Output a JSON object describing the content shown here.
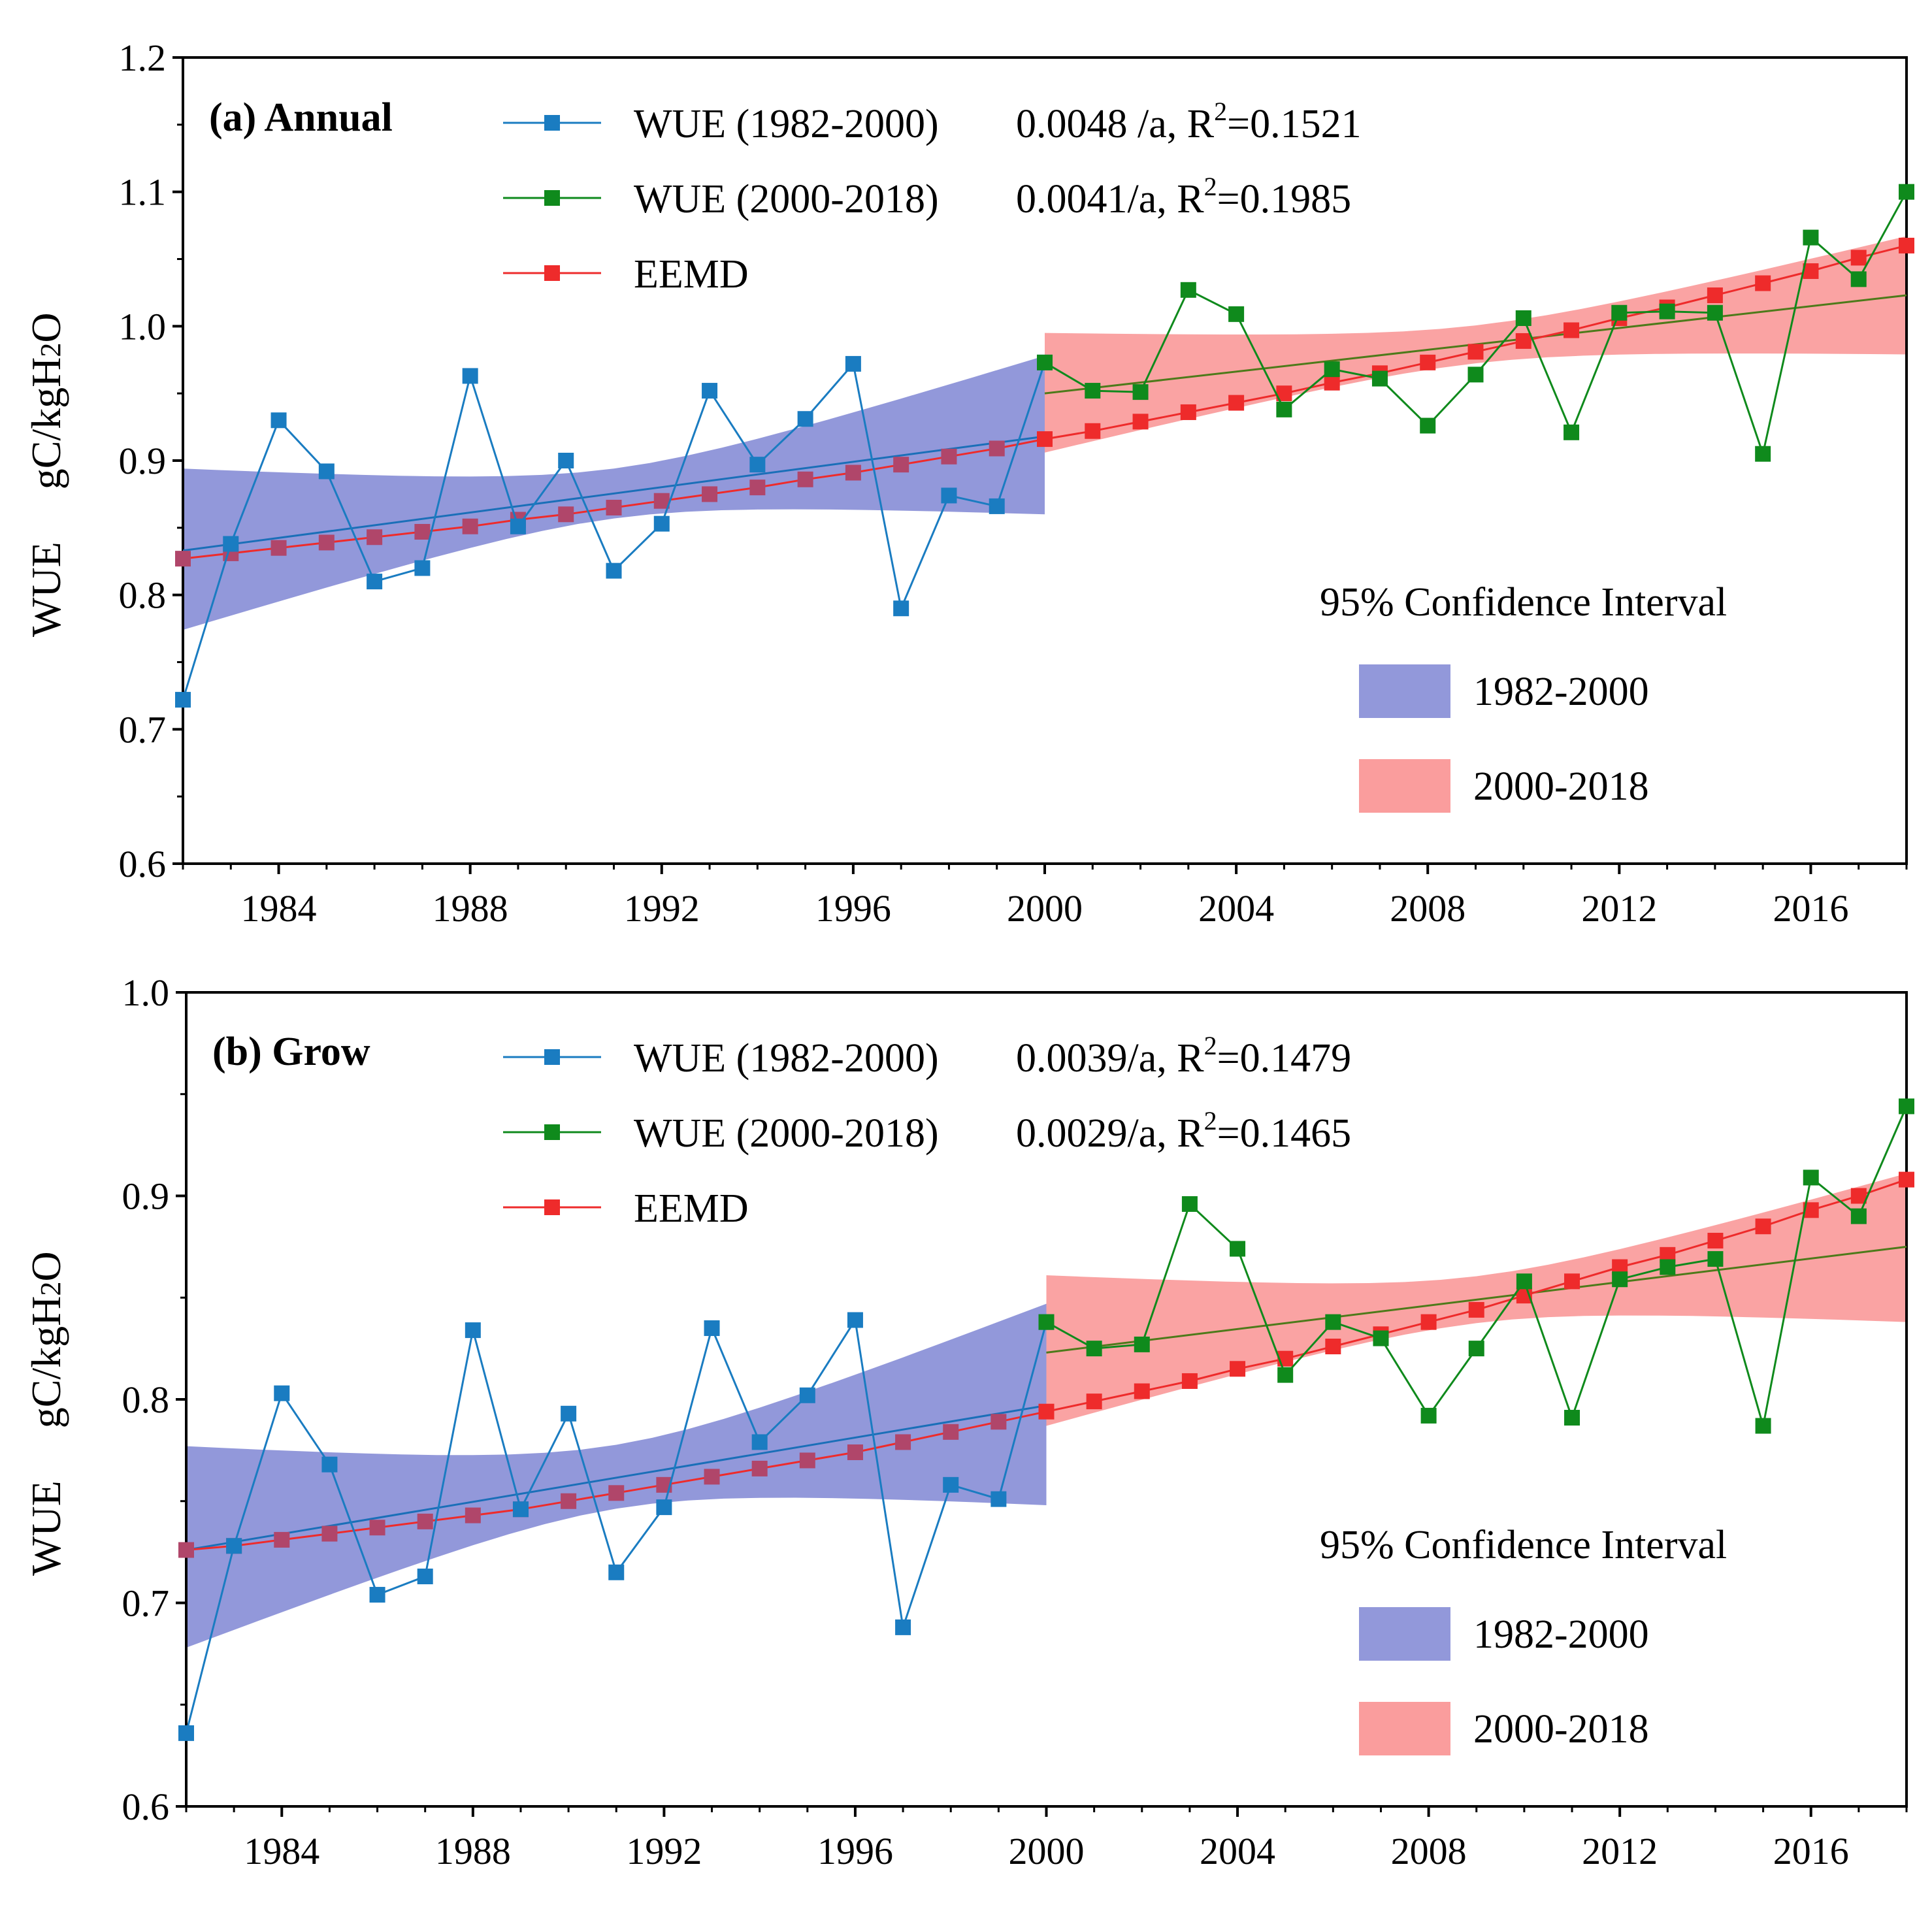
{
  "colors": {
    "blue": "#1a7cc1",
    "green": "#0f8a1c",
    "red": "#ee2b2b",
    "blue_band": "#7f86d4",
    "red_band": "#f98c8c",
    "overlap_marker": "#b0466a",
    "fit_blue": "#1a6fb8",
    "fit_green": "#4d7a1a"
  },
  "years": [
    1982,
    1983,
    1984,
    1985,
    1986,
    1987,
    1988,
    1989,
    1990,
    1991,
    1992,
    1993,
    1994,
    1995,
    1996,
    1997,
    1998,
    1999,
    2000,
    2001,
    2002,
    2003,
    2004,
    2005,
    2006,
    2007,
    2008,
    2009,
    2010,
    2011,
    2012,
    2013,
    2014,
    2015,
    2016,
    2017,
    2018
  ],
  "chart_data": [
    {
      "type": "line",
      "title": "(a) Annual",
      "ylabel_left": "WUE",
      "ylabel_right": "gC/kgH2O",
      "xlim": [
        1982,
        2018
      ],
      "ylim": [
        0.6,
        1.2
      ],
      "x_ticks": [
        "1984",
        "1988",
        "1992",
        "1996",
        "2000",
        "2004",
        "2008",
        "2012",
        "2016"
      ],
      "y_ticks": [
        "0.6",
        "0.7",
        "0.8",
        "0.9",
        "1.0",
        "1.1",
        "1.2"
      ],
      "series": [
        {
          "name": "WUE (1982-2000)",
          "stat": "0.0048 /a, R",
          "r2": "=0.1521",
          "x_start": 1982,
          "values": [
            0.722,
            0.838,
            0.93,
            0.892,
            0.81,
            0.82,
            0.963,
            0.851,
            0.9,
            0.818,
            0.853,
            0.952,
            0.897,
            0.931,
            0.972,
            0.79,
            0.874,
            0.866,
            0.973
          ]
        },
        {
          "name": "WUE (2000-2018)",
          "stat": "0.0041/a, R",
          "r2": "=0.1985",
          "x_start": 2000,
          "values": [
            0.973,
            0.952,
            0.951,
            1.027,
            1.009,
            0.938,
            0.968,
            0.961,
            0.926,
            0.964,
            1.006,
            0.921,
            1.01,
            1.011,
            1.01,
            0.905,
            1.066,
            1.035,
            1.1
          ]
        },
        {
          "name": "EEMD",
          "x_start": 1982,
          "values": [
            0.827,
            0.831,
            0.835,
            0.839,
            0.843,
            0.847,
            0.851,
            0.856,
            0.86,
            0.865,
            0.87,
            0.875,
            0.88,
            0.886,
            0.891,
            0.897,
            0.903,
            0.909,
            0.916,
            0.922,
            0.929,
            0.936,
            0.943,
            0.95,
            0.958,
            0.965,
            0.973,
            0.981,
            0.989,
            0.997,
            1.006,
            1.014,
            1.023,
            1.032,
            1.041,
            1.051,
            1.06
          ]
        }
      ],
      "fits": [
        {
          "name": "fit 1982-2000",
          "x": [
            1982,
            2000
          ],
          "y": [
            0.833,
            0.918
          ]
        },
        {
          "name": "fit 2000-2018",
          "x": [
            2000,
            2018
          ],
          "y": [
            0.95,
            1.023
          ]
        }
      ],
      "bands": [
        {
          "name": "1982-2000",
          "x": [
            1982,
            2000
          ],
          "upper": [
            0.894,
            0.978
          ],
          "lower": [
            0.774,
            0.86
          ],
          "mid": [
            0.833,
            0.918
          ]
        },
        {
          "name": "2000-2018",
          "x": [
            2000,
            2018
          ],
          "upper": [
            0.995,
            1.067
          ],
          "lower": [
            0.906,
            0.979
          ],
          "mid": [
            0.95,
            1.023
          ]
        }
      ],
      "ci_title": "95% Confidence Interval",
      "ci_items": [
        "1982-2000",
        "2000-2018"
      ]
    },
    {
      "type": "line",
      "title": "(b) Grow",
      "ylabel_left": "WUE",
      "ylabel_right": "gC/kgH2O",
      "xlim": [
        1982,
        2018
      ],
      "ylim": [
        0.6,
        1.0
      ],
      "x_ticks": [
        "1984",
        "1988",
        "1992",
        "1996",
        "2000",
        "2004",
        "2008",
        "2012",
        "2016"
      ],
      "y_ticks": [
        "0.6",
        "0.7",
        "0.8",
        "0.9",
        "1.0"
      ],
      "series": [
        {
          "name": "WUE (1982-2000)",
          "stat": "0.0039/a, R",
          "r2": "=0.1479",
          "x_start": 1982,
          "values": [
            0.636,
            0.728,
            0.803,
            0.768,
            0.704,
            0.713,
            0.834,
            0.746,
            0.793,
            0.715,
            0.747,
            0.835,
            0.779,
            0.802,
            0.839,
            0.688,
            0.758,
            0.751,
            0.838
          ]
        },
        {
          "name": "WUE (2000-2018)",
          "stat": "0.0029/a, R",
          "r2": "=0.1465",
          "x_start": 2000,
          "values": [
            0.838,
            0.825,
            0.827,
            0.896,
            0.874,
            0.812,
            0.838,
            0.83,
            0.792,
            0.825,
            0.858,
            0.791,
            0.859,
            0.865,
            0.869,
            0.787,
            0.909,
            0.89,
            0.944
          ]
        },
        {
          "name": "EEMD",
          "x_start": 1982,
          "values": [
            0.726,
            0.728,
            0.731,
            0.734,
            0.737,
            0.74,
            0.743,
            0.746,
            0.75,
            0.754,
            0.758,
            0.762,
            0.766,
            0.77,
            0.774,
            0.779,
            0.784,
            0.789,
            0.794,
            0.799,
            0.804,
            0.809,
            0.815,
            0.82,
            0.826,
            0.832,
            0.838,
            0.844,
            0.851,
            0.858,
            0.865,
            0.871,
            0.878,
            0.885,
            0.893,
            0.9,
            0.908
          ]
        }
      ],
      "fits": [
        {
          "name": "fit 1982-2000",
          "x": [
            1982,
            2000
          ],
          "y": [
            0.726,
            0.797
          ]
        },
        {
          "name": "fit 2000-2018",
          "x": [
            2000,
            2018
          ],
          "y": [
            0.823,
            0.875
          ]
        }
      ],
      "bands": [
        {
          "name": "1982-2000",
          "x": [
            1982,
            2000
          ],
          "upper": [
            0.777,
            0.847
          ],
          "lower": [
            0.678,
            0.748
          ],
          "mid": [
            0.727,
            0.797
          ]
        },
        {
          "name": "2000-2018",
          "x": [
            2000,
            2018
          ],
          "upper": [
            0.861,
            0.911
          ],
          "lower": [
            0.787,
            0.838
          ],
          "mid": [
            0.823,
            0.875
          ]
        }
      ],
      "ci_title": "95% Confidence Interval",
      "ci_items": [
        "1982-2000",
        "2000-2018"
      ]
    }
  ]
}
